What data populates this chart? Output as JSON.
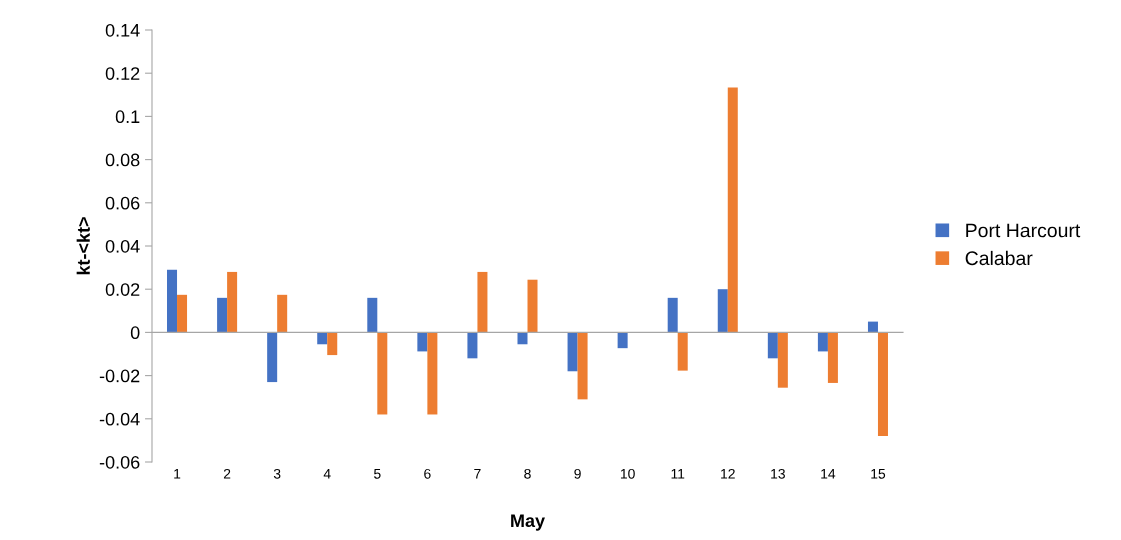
{
  "chart_data": {
    "type": "bar",
    "xlabel": "May",
    "ylabel": "kt-<kt>",
    "categories": [
      "1",
      "2",
      "3",
      "4",
      "5",
      "6",
      "7",
      "8",
      "9",
      "10",
      "11",
      "12",
      "13",
      "14",
      "15"
    ],
    "series": [
      {
        "name": "Port Harcourt",
        "color": "#4472c4",
        "values": [
          0.029,
          0.016,
          -0.023,
          -0.0055,
          0.016,
          -0.0088,
          -0.012,
          -0.0055,
          -0.018,
          -0.0073,
          0.016,
          0.02,
          -0.012,
          -0.0088,
          0.005
        ]
      },
      {
        "name": "Calabar",
        "color": "#ed7d31",
        "values": [
          0.0174,
          0.028,
          0.0174,
          -0.0105,
          -0.038,
          -0.038,
          0.028,
          0.0244,
          -0.031,
          0,
          -0.0177,
          0.1134,
          -0.0256,
          -0.0234,
          -0.048
        ]
      }
    ],
    "ylim": [
      -0.06,
      0.14
    ],
    "yticks": [
      {
        "value": -0.06,
        "label": "-0.06"
      },
      {
        "value": -0.04,
        "label": "-0.04"
      },
      {
        "value": -0.02,
        "label": "-0.02"
      },
      0,
      0.02,
      0.04,
      0.06,
      0.08,
      {
        "value": 0.1,
        "label": "0.1"
      },
      0.12,
      0.14
    ],
    "legend": "right"
  }
}
